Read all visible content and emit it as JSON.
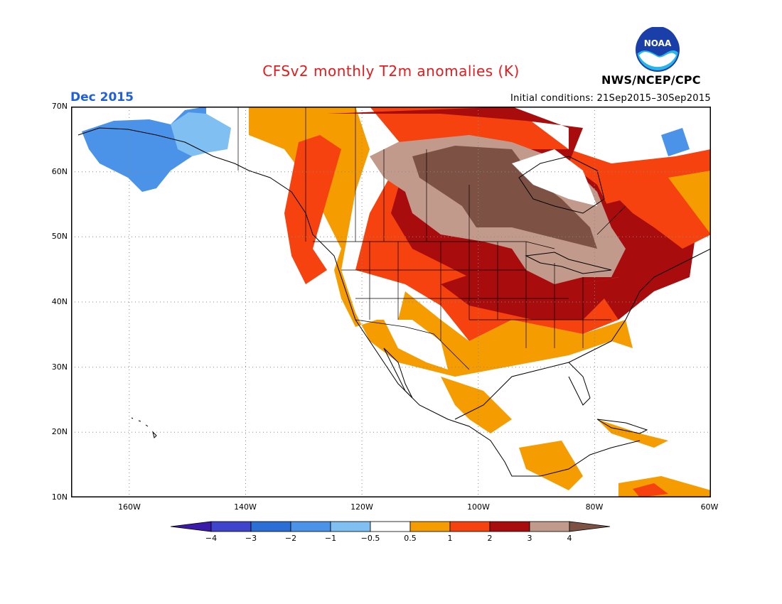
{
  "header": {
    "title": "CFSv2 monthly T2m anomalies (K)",
    "month": "Dec 2015",
    "initial_conditions": "Initial conditions: 21Sep2015–30Sep2015",
    "agency": "NWS/NCEP/CPC",
    "logo_icon": "noaa-logo-icon",
    "logo_text": "NOAA"
  },
  "map": {
    "lat_labels": [
      "70N",
      "60N",
      "50N",
      "40N",
      "30N",
      "20N",
      "10N"
    ],
    "lon_labels": [
      "160W",
      "140W",
      "120W",
      "100W",
      "80W",
      "60W"
    ],
    "lon_range": [
      -170,
      -60
    ],
    "lat_range": [
      10,
      70
    ],
    "grid": "dotted"
  },
  "colorbar": {
    "labels": [
      "−4",
      "−3",
      "−2",
      "−1",
      "−0.5",
      "0.5",
      "1",
      "2",
      "3",
      "4"
    ],
    "colors": [
      "#3a1aa8",
      "#3e44cc",
      "#2b6fd6",
      "#4a93e8",
      "#7fbff2",
      "#ffffff",
      "#f59c00",
      "#f5420f",
      "#a80c0c",
      "#c29a8c",
      "#7d5244"
    ]
  }
}
